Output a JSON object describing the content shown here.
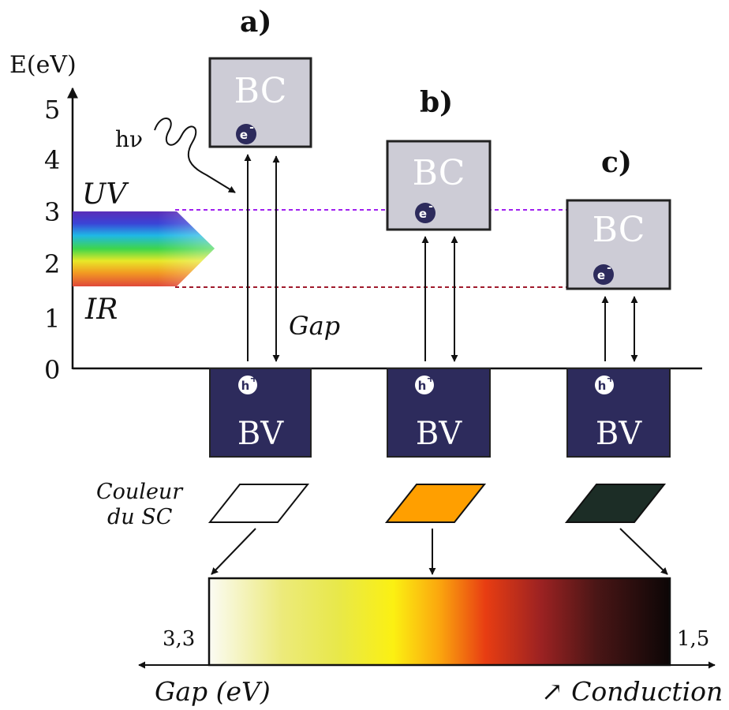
{
  "axis": {
    "label": "E(eV)",
    "ticks": [
      "0",
      "1",
      "2",
      "3",
      "4",
      "5"
    ]
  },
  "cases": [
    {
      "label": "a)",
      "bc": "BC",
      "bv": "BV",
      "electron": "e",
      "electron_sup": "-",
      "hole": "h",
      "hole_sup": "+",
      "sc_color": "#ffffff"
    },
    {
      "label": "b)",
      "bc": "BC",
      "bv": "BV",
      "electron": "e",
      "electron_sup": "-",
      "hole": "h",
      "hole_sup": "+",
      "sc_color": "#ff9f00"
    },
    {
      "label": "c)",
      "bc": "BC",
      "bv": "BV",
      "electron": "e",
      "electron_sup": "-",
      "hole": "h",
      "hole_sup": "+",
      "sc_color": "#1c2d26"
    }
  ],
  "photon": "hν",
  "spectrum": {
    "top": "UV",
    "bottom": "IR"
  },
  "gap_label": "Gap",
  "couleur_label": [
    "Couleur",
    "du SC"
  ],
  "scale": {
    "left_value": "3,3",
    "right_value": "1,5",
    "left_caption": "Gap (eV)",
    "right_caption": "↗ Conduction"
  },
  "colors": {
    "bc_fill": "#cdccd6",
    "bv_fill": "#2d2b5c",
    "uv_line": "#a020f0",
    "ir_line": "#a01b2d"
  }
}
